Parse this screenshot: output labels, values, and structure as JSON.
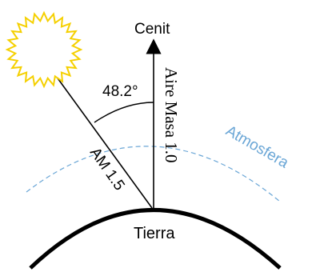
{
  "labels": {
    "zenith": "Cenit",
    "angle": "48.2°",
    "air_mass_zenith": "Aire Masa 1.0",
    "air_mass_slant": "AM 1.5",
    "atmosphere": "Atmosfera",
    "earth": "Tierra"
  },
  "colors": {
    "sun": "#f5d000",
    "atmosphere": "#6aa6d6",
    "lines": "#000000"
  },
  "icons": {
    "sun": "sun-icon",
    "zenith_arrow": "arrow-up-icon"
  }
}
